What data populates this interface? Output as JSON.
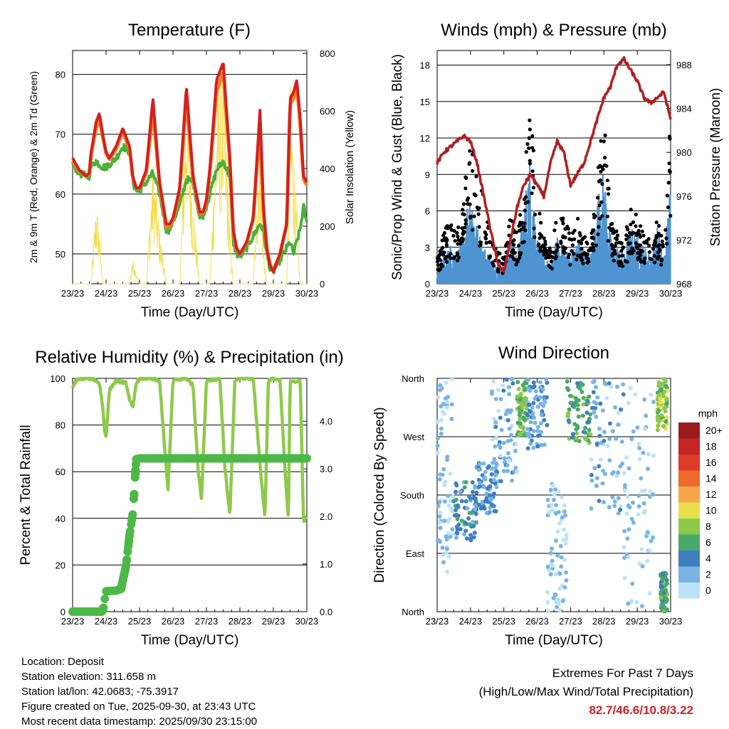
{
  "colors": {
    "red": "#d42020",
    "orange": "#f07f20",
    "green": "#4caf3a",
    "yellow": "#f4de46",
    "blue": "#4e94d0",
    "black": "#000000",
    "maroon": "#b02020",
    "rh": "#8fc94c",
    "precip": "#4db848"
  },
  "info": {
    "location": "Location: Deposit",
    "elevation": "Station elevation: 311.658 m",
    "latlon": "Station lat/lon: 42.0683; -75.3917",
    "created": "Figure created on Tue, 2025-09-30, at 23:43 UTC",
    "recent": "Most recent data timestamp: 2025/09/30 23:15:00"
  },
  "extremes": {
    "title": "Extremes For Past 7 Days",
    "subtitle": "(High/Low/Max Wind/Total Precipitation)",
    "values": "82.7/46.6/10.8/3.22"
  },
  "chart_data": [
    {
      "id": "temperature",
      "type": "line",
      "title": "Temperature (F)",
      "xlabel": "Time (Day/UTC)",
      "ylabel": "2m & 9m T (Red, Orange) & 2m Td (Green)",
      "y2label": "Solar Insolation (Yellow)",
      "xlim": [
        0,
        7
      ],
      "ylim": [
        45,
        84
      ],
      "y2lim": [
        0,
        810
      ],
      "xticks": [
        "23/23",
        "24/23",
        "25/23",
        "26/23",
        "27/23",
        "28/23",
        "29/23",
        "30/23"
      ],
      "yticks": [
        50,
        60,
        70,
        80
      ],
      "y2ticks": [
        0,
        200,
        400,
        600,
        800
      ],
      "x": [
        0,
        0.2,
        0.4,
        0.5,
        0.55,
        0.6,
        0.7,
        0.8,
        0.9,
        1.0,
        1.1,
        1.3,
        1.5,
        1.7,
        1.8,
        1.9,
        2.0,
        2.2,
        2.4,
        2.6,
        2.8,
        2.9,
        3.0,
        3.2,
        3.4,
        3.6,
        3.8,
        3.9,
        4.0,
        4.1,
        4.3,
        4.5,
        4.7,
        4.8,
        4.9,
        5.0,
        5.2,
        5.4,
        5.6,
        5.7,
        5.8,
        5.9,
        6.0,
        6.2,
        6.4,
        6.5,
        6.6,
        6.7,
        6.8,
        6.9,
        7.0
      ],
      "series": [
        {
          "name": "2m T",
          "values": [
            66,
            64,
            63,
            63.5,
            67,
            68.5,
            72,
            73.5,
            70,
            67,
            66,
            68,
            71,
            68,
            63,
            61,
            61,
            64,
            76,
            62,
            55,
            55,
            56,
            61,
            78,
            63,
            57,
            57,
            59,
            64,
            79,
            82,
            66,
            54,
            51,
            50,
            52,
            56,
            74,
            58,
            51,
            48,
            47,
            50,
            55,
            76,
            77,
            79,
            73,
            63,
            62
          ]
        },
        {
          "name": "9m T",
          "values": [
            65.5,
            63.8,
            63,
            63.3,
            66.5,
            68,
            71,
            72.5,
            69.5,
            66.8,
            65.8,
            67.5,
            70.5,
            67.5,
            62.8,
            61,
            61,
            63.5,
            74,
            61.5,
            54.5,
            54.5,
            55.8,
            60.5,
            76,
            62.5,
            56.8,
            56.8,
            58.8,
            63.5,
            77,
            80.5,
            65.5,
            53.8,
            50.8,
            50,
            51.8,
            55.8,
            72,
            57.5,
            51,
            48.2,
            47.2,
            50,
            55,
            75,
            76,
            78,
            72,
            62.5,
            61.5
          ]
        },
        {
          "name": "2m Td",
          "values": [
            65,
            63.5,
            63,
            63,
            64.5,
            65,
            65.5,
            65,
            64.5,
            64.5,
            65,
            66,
            68,
            67,
            62,
            60.5,
            60.5,
            62,
            63.5,
            60,
            54,
            54,
            55.5,
            58,
            62.5,
            62,
            56,
            56.5,
            58,
            60,
            64,
            65.5,
            63,
            52,
            50,
            49.5,
            51,
            53,
            55,
            54,
            50,
            47.5,
            47,
            49,
            51,
            52,
            50,
            52,
            54,
            58,
            55
          ]
        },
        {
          "name": "Solar",
          "values": [
            0,
            0,
            0,
            0,
            0,
            90,
            300,
            200,
            0,
            0,
            0,
            0,
            0,
            0,
            90,
            40,
            0,
            0,
            450,
            200,
            0,
            0,
            0,
            0,
            780,
            300,
            0,
            0,
            0,
            0,
            650,
            810,
            200,
            0,
            0,
            0,
            0,
            0,
            630,
            150,
            0,
            0,
            0,
            0,
            0,
            700,
            500,
            250,
            0,
            0,
            0
          ]
        }
      ]
    },
    {
      "id": "winds",
      "type": "line",
      "title": "Winds (mph) & Pressure (mb)",
      "xlabel": "Time (Day/UTC)",
      "ylabel": "Sonic/Prop Wind & Gust (Blue, Black)",
      "y2label": "Station Pressure (Maroon)",
      "xlim": [
        0,
        7
      ],
      "ylim": [
        0,
        19.2
      ],
      "y2lim": [
        968,
        989.3
      ],
      "xticks": [
        "23/23",
        "24/23",
        "25/23",
        "26/23",
        "27/23",
        "28/23",
        "29/23",
        "30/23"
      ],
      "yticks": [
        0,
        3,
        6,
        9,
        12,
        15,
        18
      ],
      "y2ticks": [
        968,
        972,
        976,
        980,
        984,
        988
      ],
      "x": [
        0,
        0.2,
        0.4,
        0.6,
        0.8,
        1.0,
        1.2,
        1.4,
        1.6,
        1.8,
        2.0,
        2.2,
        2.4,
        2.6,
        2.8,
        3.0,
        3.2,
        3.4,
        3.6,
        3.8,
        4.0,
        4.2,
        4.4,
        4.6,
        4.8,
        5.0,
        5.2,
        5.4,
        5.6,
        5.8,
        6.0,
        6.2,
        6.4,
        6.6,
        6.8,
        7.0
      ],
      "series": [
        {
          "name": "Wind",
          "values": [
            1,
            1.5,
            2,
            1.5,
            3,
            5.5,
            3,
            2,
            1.5,
            1,
            1,
            2.5,
            1.5,
            4,
            7,
            2.5,
            1.5,
            1,
            2.5,
            2,
            1.5,
            2.5,
            2,
            1.5,
            4.5,
            6,
            2.5,
            2,
            1.5,
            3,
            2.5,
            2,
            1.5,
            3,
            1.5,
            5.5
          ]
        },
        {
          "name": "Gust",
          "values": [
            1.5,
            3,
            4,
            3,
            6,
            9,
            7,
            5,
            3,
            2,
            1.5,
            4,
            3,
            6,
            11,
            5,
            3,
            2,
            4,
            4,
            3,
            4,
            3,
            2.5,
            7,
            10,
            4,
            3,
            2.5,
            4.5,
            4,
            3,
            2.5,
            4,
            2.5,
            10
          ]
        },
        {
          "name": "Pressure",
          "values": [
            979,
            980,
            980.5,
            981,
            981.5,
            981,
            979,
            976,
            973,
            970,
            969,
            972,
            975,
            977,
            978,
            977,
            976,
            979,
            981,
            980,
            977,
            978,
            979,
            981,
            983,
            985,
            986,
            988,
            988.5,
            987.5,
            986.5,
            985,
            984.5,
            985,
            985.5,
            983
          ]
        }
      ]
    },
    {
      "id": "humidity",
      "type": "line",
      "title": "Relative Humidity (%) & Precipitation (in)",
      "xlabel": "Time (Day/UTC)",
      "ylabel": "Percent & Total Rainfall",
      "xlim": [
        0,
        7
      ],
      "ylim": [
        0,
        100
      ],
      "y2lim": [
        0,
        4.9
      ],
      "xticks": [
        "23/23",
        "24/23",
        "25/23",
        "26/23",
        "27/23",
        "28/23",
        "29/23",
        "30/23"
      ],
      "yticks": [
        0,
        20,
        40,
        60,
        80,
        100
      ],
      "y2ticks": [
        "0.0",
        "1.0",
        "2.0",
        "3.0",
        "4.0"
      ],
      "series": [
        {
          "name": "RH",
          "x": [
            0,
            0.1,
            0.3,
            0.6,
            0.8,
            0.9,
            0.95,
            1.0,
            1.1,
            1.3,
            1.6,
            1.7,
            1.8,
            1.9,
            2.0,
            2.3,
            2.6,
            2.75,
            2.85,
            3.0,
            3.4,
            3.6,
            3.75,
            3.85,
            4.0,
            4.4,
            4.55,
            4.7,
            4.85,
            5.0,
            5.4,
            5.6,
            5.75,
            5.85,
            6.0,
            6.2,
            6.35,
            6.45,
            6.5,
            6.6,
            6.7,
            6.8,
            6.9,
            7.0
          ],
          "values": [
            96,
            99,
            100,
            100,
            98,
            88,
            78,
            75,
            95,
            99,
            98,
            91,
            87,
            98,
            100,
            100,
            99,
            70,
            52,
            99,
            100,
            97,
            61,
            48,
            99,
            100,
            62,
            41,
            99,
            100,
            100,
            63,
            40,
            99,
            100,
            99,
            60,
            39,
            99,
            99,
            98,
            100,
            39,
            40
          ]
        },
        {
          "name": "Precip",
          "x": [
            0,
            0.9,
            1.0,
            1.3,
            1.45,
            1.5,
            1.6,
            1.7,
            1.8,
            1.85,
            1.9,
            2.0,
            2.2,
            2.5,
            3.0,
            4.0,
            5.0,
            6.0,
            7.0
          ],
          "values": [
            0,
            0,
            0.43,
            0.44,
            0.48,
            0.65,
            0.98,
            1.6,
            2.07,
            2.6,
            3.2,
            3.22,
            3.22,
            3.22,
            3.22,
            3.22,
            3.22,
            3.22,
            3.22
          ]
        }
      ]
    },
    {
      "id": "direction",
      "type": "scatter",
      "title": "Wind Direction",
      "xlabel": "Time (Day/UTC)",
      "ylabel": "Direction (Colored By Speed)",
      "xlim": [
        0,
        7
      ],
      "ylim": [
        0,
        360
      ],
      "xticks": [
        "23/23",
        "24/23",
        "25/23",
        "26/23",
        "27/23",
        "28/23",
        "29/23",
        "30/23"
      ],
      "yticks": [
        "North",
        "East",
        "South",
        "West",
        "North"
      ],
      "legend": {
        "title": "mph",
        "labels": [
          "20+",
          "18",
          "16",
          "14",
          "12",
          "10",
          "8",
          "6",
          "4",
          "2",
          "0"
        ],
        "colors": [
          "#9b1c1c",
          "#c42424",
          "#dd3a2a",
          "#ee6a2a",
          "#f7a54a",
          "#e8e04a",
          "#8cc84c",
          "#4aa86a",
          "#3f7fc0",
          "#79b4e4",
          "#bde2f5"
        ]
      },
      "clusters": [
        {
          "x": [
            0,
            0.5
          ],
          "dir": [
            60,
            360
          ],
          "speed": 1
        },
        {
          "x": [
            0.5,
            1.2
          ],
          "dir": [
            110,
            200
          ],
          "speed": 4
        },
        {
          "x": [
            1.1,
            1.8
          ],
          "dir": [
            150,
            230
          ],
          "speed": 3
        },
        {
          "x": [
            1.6,
            2.4
          ],
          "dir": [
            200,
            360
          ],
          "speed": 2
        },
        {
          "x": [
            2.4,
            2.7
          ],
          "dir": [
            270,
            360
          ],
          "speed": 7
        },
        {
          "x": [
            2.7,
            3.3
          ],
          "dir": [
            250,
            360
          ],
          "speed": 3
        },
        {
          "x": [
            3.3,
            3.9
          ],
          "dir": [
            0,
            200
          ],
          "speed": 1
        },
        {
          "x": [
            3.9,
            4.6
          ],
          "dir": [
            260,
            360
          ],
          "speed": 6
        },
        {
          "x": [
            4.6,
            5.6
          ],
          "dir": [
            150,
            360
          ],
          "speed": 2
        },
        {
          "x": [
            5.6,
            6.5
          ],
          "dir": [
            0,
            360
          ],
          "speed": 1
        },
        {
          "x": [
            6.6,
            6.9
          ],
          "dir": [
            280,
            360
          ],
          "speed": 8
        },
        {
          "x": [
            6.7,
            6.9
          ],
          "dir": [
            0,
            60
          ],
          "speed": 6
        }
      ]
    }
  ]
}
